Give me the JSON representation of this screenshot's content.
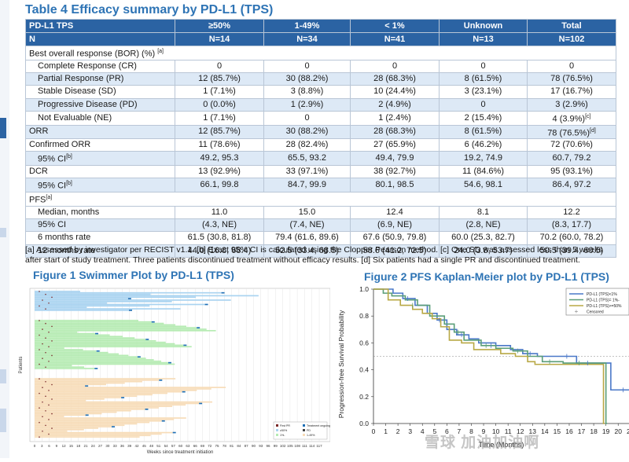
{
  "table": {
    "title": "Table 4 Efficacy summary by PD-L1 (TPS)",
    "header": [
      "PD-L1 TPS",
      "≥50%",
      "1-49%",
      "< 1%",
      "Unknown",
      "Total"
    ],
    "n_row": [
      "N",
      "N=14",
      "N=34",
      "N=41",
      "N=13",
      "N=102"
    ],
    "section_bor": "Best overall response (BOR) (%)",
    "section_bor_note": "[a]",
    "rows": [
      {
        "label": "Complete Response (CR)",
        "sub": true,
        "vals": [
          "0",
          "0",
          "0",
          "0",
          "0"
        ]
      },
      {
        "label": "Partial Response (PR)",
        "sub": true,
        "alt": true,
        "vals": [
          "12 (85.7%)",
          "30 (88.2%)",
          "28 (68.3%)",
          "8 (61.5%)",
          "78 (76.5%)"
        ]
      },
      {
        "label": "Stable Disease (SD)",
        "sub": true,
        "vals": [
          "1 (7.1%)",
          "3 (8.8%)",
          "10 (24.4%)",
          "3 (23.1%)",
          "17 (16.7%)"
        ]
      },
      {
        "label": "Progressive Disease (PD)",
        "sub": true,
        "alt": true,
        "vals": [
          "0 (0.0%)",
          "1 (2.9%)",
          "2 (4.9%)",
          "0",
          "3 (2.9%)"
        ]
      },
      {
        "label": "Not Evaluable (NE)",
        "sub": true,
        "vals": [
          "1 (7.1%)",
          "0",
          "1 (2.4%)",
          "2 (15.4%)",
          "4 (3.9%)"
        ],
        "notes": [
          "",
          "",
          "",
          "",
          "[c]"
        ]
      },
      {
        "label": "ORR",
        "alt": true,
        "vals": [
          "12 (85.7%)",
          "30 (88.2%)",
          "28 (68.3%)",
          "8 (61.5%)",
          "78 (76.5%)"
        ],
        "notes": [
          "",
          "",
          "",
          "",
          "[d]"
        ]
      },
      {
        "label": "Confirmed ORR",
        "vals": [
          "11 (78.6%)",
          "28 (82.4%)",
          "27 (65.9%)",
          "6 (46.2%)",
          "72 (70.6%)"
        ]
      },
      {
        "label": "95% CI",
        "label_note": "[b]",
        "sub": true,
        "alt": true,
        "vals": [
          "49.2, 95.3",
          "65.5, 93.2",
          "49.4, 79.9",
          "19.2, 74.9",
          "60.7, 79.2"
        ]
      },
      {
        "label": "DCR",
        "vals": [
          "13 (92.9%)",
          "33 (97.1%)",
          "38 (92.7%)",
          "11 (84.6%)",
          "95 (93.1%)"
        ]
      },
      {
        "label": "95% CI",
        "label_note": "[b]",
        "sub": true,
        "alt": true,
        "vals": [
          "66.1, 99.8",
          "84.7, 99.9",
          "80.1, 98.5",
          "54.6, 98.1",
          "86.4, 97.2"
        ]
      },
      {
        "label": "PFS",
        "label_note": "[a]",
        "section": true,
        "vals": []
      },
      {
        "label": "Median, months",
        "sub": true,
        "vals": [
          "11.0",
          "15.0",
          "12.4",
          "8.1",
          "12.2"
        ]
      },
      {
        "label": "95% CI",
        "sub": true,
        "alt": true,
        "vals": [
          "(4.3, NE)",
          "(7.4, NE)",
          "(6.9, NE)",
          "(2.8, NE)",
          "(8.3, 17.7)"
        ]
      },
      {
        "label": "6 months rate",
        "sub": true,
        "vals": [
          "61.5 (30.8, 81.8)",
          "79.4 (61.6, 89.6)",
          "67.6 (50.9, 79.8)",
          "60.0 (25.3, 82.7)",
          "70.2 (60.0, 78.2)"
        ]
      },
      {
        "label": "12 months rate",
        "sub": true,
        "alt": true,
        "vals": [
          "44.0 (16.8, 68.4)",
          "52.5 (33.4, 68.5)",
          "58.6 (41.2, 72.5)",
          "24.0 (3.8, 53.7)",
          "50.5 (39.4, 60.5)"
        ]
      }
    ]
  },
  "footnote": "[a] Assessed by investigator per RECIST v1.1. [b] Exact 95% CI is calculated using the Clopper Pearson method. [c] One SD was assessed less than 5 weeks after start of study treatment. Three patients discontinued treatment without efficacy results. [d] Six patients had a single PR and discontinued treatment.",
  "figure1": {
    "title": "Figure 1 Swimmer Plot by PD-L1 (TPS)",
    "ylabel": "Patients",
    "xlabel": "Weeks since treatment initiation",
    "xticks": [
      "0",
      "3",
      "6",
      "9",
      "12",
      "15",
      "18",
      "21",
      "24",
      "27",
      "30",
      "33",
      "36",
      "39",
      "42",
      "45",
      "48",
      "51",
      "54",
      "57",
      "60",
      "63",
      "66",
      "69",
      "72",
      "75",
      "78",
      "81",
      "84",
      "87",
      "90",
      "93",
      "96",
      "99",
      "102",
      "105",
      "108",
      "111",
      "114",
      "117"
    ],
    "legend": [
      "First PR",
      "Treatment ongoing",
      "≥50%",
      "PD",
      "1%-",
      "1-49%"
    ],
    "groups": [
      {
        "name": "≥50%",
        "color": "#a9d3f0"
      },
      {
        "name": "1-49%",
        "color": "#b5ebb2"
      },
      {
        "name": "<1%",
        "color": "#f7dcb8"
      }
    ]
  },
  "figure2": {
    "title": "Figure 2 PFS Kaplan-Meier plot by PD-L1 (TPS)",
    "ylabel": "Progression-free Survival Probability",
    "xlabel": "Time (Months)",
    "yticks": [
      "0.0",
      "0.2",
      "0.4",
      "0.6",
      "0.8",
      "1.0"
    ],
    "xticks": [
      "0",
      "1",
      "2",
      "3",
      "4",
      "5",
      "6",
      "7",
      "8",
      "9",
      "10",
      "11",
      "12",
      "13",
      "14",
      "15",
      "16",
      "17",
      "18",
      "19",
      "20",
      "21"
    ],
    "legend": [
      "PD-L1 (TPS)<1%",
      "PD-L1 (TPS)= 1%-",
      "PD-L1 (TPS)>=50%",
      "Censored"
    ],
    "colors": {
      "lt1": "#4a78c8",
      "mid": "#5a9e78",
      "ge50": "#b8a845",
      "censor": "#888888"
    }
  },
  "watermark": "雪球 加油加油啊"
}
